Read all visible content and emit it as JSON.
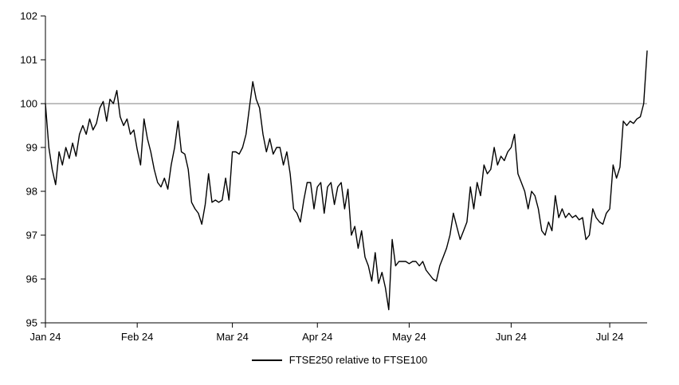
{
  "chart_data": {
    "type": "line",
    "title": "",
    "xlabel": "",
    "ylabel": "",
    "ylim": [
      95,
      102
    ],
    "y_ticks": [
      95,
      96,
      97,
      98,
      99,
      100,
      101,
      102
    ],
    "x_ticks": [
      {
        "label": "Jan 24",
        "index": 0
      },
      {
        "label": "Feb 24",
        "index": 27
      },
      {
        "label": "Mar 24",
        "index": 55
      },
      {
        "label": "Apr 24",
        "index": 80
      },
      {
        "label": "May 24",
        "index": 107
      },
      {
        "label": "Jun 24",
        "index": 137
      },
      {
        "label": "Jul 24",
        "index": 166
      }
    ],
    "reference_line": 100,
    "reference_color": "#808080",
    "line_color": "#000000",
    "grid": false,
    "legend_position": "bottom",
    "series": [
      {
        "name": "FTSE250 relative to FTSE100",
        "values": [
          100.0,
          99.0,
          98.5,
          98.15,
          98.9,
          98.6,
          99.0,
          98.75,
          99.1,
          98.8,
          99.3,
          99.5,
          99.3,
          99.65,
          99.4,
          99.55,
          99.9,
          100.05,
          99.6,
          100.1,
          100.0,
          100.3,
          99.7,
          99.5,
          99.65,
          99.3,
          99.4,
          98.95,
          98.6,
          99.65,
          99.2,
          98.9,
          98.5,
          98.2,
          98.1,
          98.3,
          98.05,
          98.6,
          99.0,
          99.6,
          98.9,
          98.85,
          98.5,
          97.75,
          97.6,
          97.5,
          97.25,
          97.7,
          98.4,
          97.75,
          97.8,
          97.75,
          97.8,
          98.3,
          97.8,
          98.9,
          98.9,
          98.85,
          99.0,
          99.3,
          99.9,
          100.5,
          100.1,
          99.9,
          99.3,
          98.9,
          99.2,
          98.85,
          99.0,
          99.0,
          98.6,
          98.9,
          98.4,
          97.6,
          97.5,
          97.3,
          97.8,
          98.2,
          98.2,
          97.6,
          98.1,
          98.2,
          97.5,
          98.1,
          98.2,
          97.7,
          98.1,
          98.2,
          97.6,
          98.05,
          97.0,
          97.2,
          96.7,
          97.1,
          96.5,
          96.3,
          95.95,
          96.6,
          95.9,
          96.15,
          95.8,
          95.3,
          96.9,
          96.3,
          96.4,
          96.4,
          96.4,
          96.35,
          96.4,
          96.4,
          96.3,
          96.4,
          96.2,
          96.1,
          96.0,
          95.95,
          96.3,
          96.5,
          96.7,
          97.0,
          97.5,
          97.2,
          96.9,
          97.1,
          97.3,
          98.1,
          97.6,
          98.2,
          97.9,
          98.6,
          98.4,
          98.5,
          99.0,
          98.6,
          98.8,
          98.7,
          98.9,
          99.0,
          99.3,
          98.4,
          98.2,
          98.0,
          97.6,
          98.0,
          97.9,
          97.6,
          97.1,
          97.0,
          97.3,
          97.1,
          97.9,
          97.4,
          97.6,
          97.4,
          97.5,
          97.4,
          97.45,
          97.35,
          97.4,
          96.9,
          97.0,
          97.6,
          97.4,
          97.3,
          97.25,
          97.5,
          97.6,
          98.6,
          98.3,
          98.55,
          99.6,
          99.5,
          99.6,
          99.55,
          99.65,
          99.7,
          100.0,
          101.2
        ]
      }
    ]
  },
  "legend": {
    "label": "FTSE250 relative to FTSE100"
  }
}
